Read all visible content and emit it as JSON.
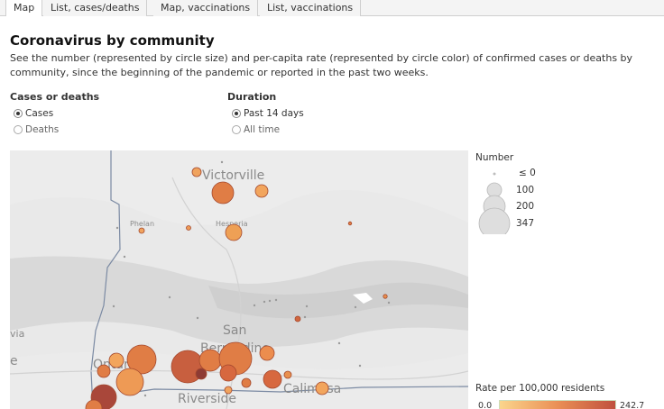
{
  "tabs": [
    "Map",
    "List, cases/deaths",
    "Map, vaccinations",
    "List, vaccinations"
  ],
  "title": "Coronavirus by community",
  "description": "See the number (represented by circle size) and per-capita rate (represented by circle color) of confirmed cases or deaths by community, since the beginning of the pandemic or reported in the past two weeks.",
  "controls": {
    "cases_deaths": {
      "label": "Cases or deaths",
      "options": [
        "Cases",
        "Deaths"
      ],
      "selected": "Cases"
    },
    "duration": {
      "label": "Duration",
      "options": [
        "Past 14 days",
        "All time"
      ],
      "selected": "Past 14 days"
    }
  },
  "map": {
    "labels": {
      "victorville": "Victorville",
      "phelan": "Phelan",
      "hesperia": "Hesperia",
      "san_bernardino": "San Bernardino",
      "ontario": "Ontario",
      "riverside": "Riverside",
      "calimesa": "Calimesa",
      "edge_via": "via",
      "edge_e": "e"
    },
    "colors": {
      "background": "#e9e9e9",
      "low": "#fbd58c",
      "mid": "#ea8f56",
      "high": "#c0503e",
      "darkest": "#8e3b34"
    }
  },
  "legend": {
    "number_title": "Number",
    "number_items": [
      "≤ 0",
      "100",
      "200",
      "347"
    ],
    "rate_title": "Rate per 100,000 residents",
    "rate_min": "0.0",
    "rate_max": "242.7"
  }
}
